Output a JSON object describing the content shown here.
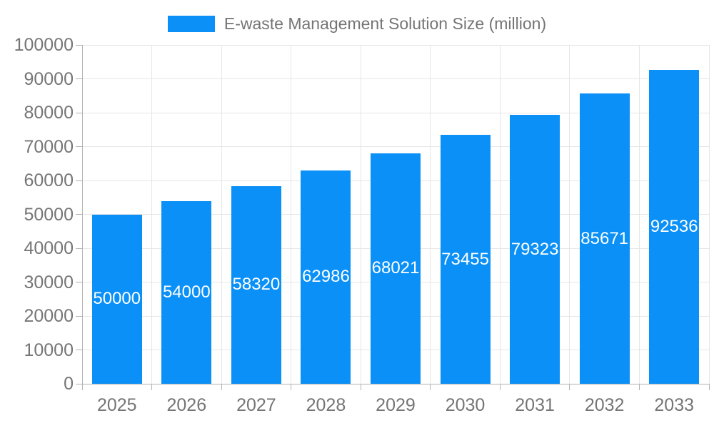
{
  "chart_data": {
    "type": "bar",
    "title": "",
    "legend_label": "E-waste Management Solution Size (million)",
    "legend_position": "top",
    "categories": [
      "2025",
      "2026",
      "2027",
      "2028",
      "2029",
      "2030",
      "2031",
      "2032",
      "2033"
    ],
    "values": [
      50000,
      54000,
      58320,
      62986,
      68021,
      73455,
      79323,
      85671,
      92536
    ],
    "value_labels": [
      "50000",
      "54000",
      "58320",
      "62986",
      "68021",
      "73455",
      "79323",
      "85671",
      "92536"
    ],
    "xlabel": "",
    "ylabel": "",
    "ylim": [
      0,
      100000
    ],
    "ytick_step": 10000,
    "ytick_labels": [
      "0",
      "10000",
      "20000",
      "30000",
      "40000",
      "50000",
      "60000",
      "70000",
      "80000",
      "90000",
      "100000"
    ],
    "grid": true,
    "colors": {
      "bar": "#0a90f7",
      "axis_text": "#757575",
      "legend_text": "#757575",
      "grid_line": "#e6e6e6",
      "axis_line": "#b3b3b3",
      "tick_line": "#b3b3b3",
      "value_label": "#ffffff",
      "background": "#ffffff"
    }
  }
}
